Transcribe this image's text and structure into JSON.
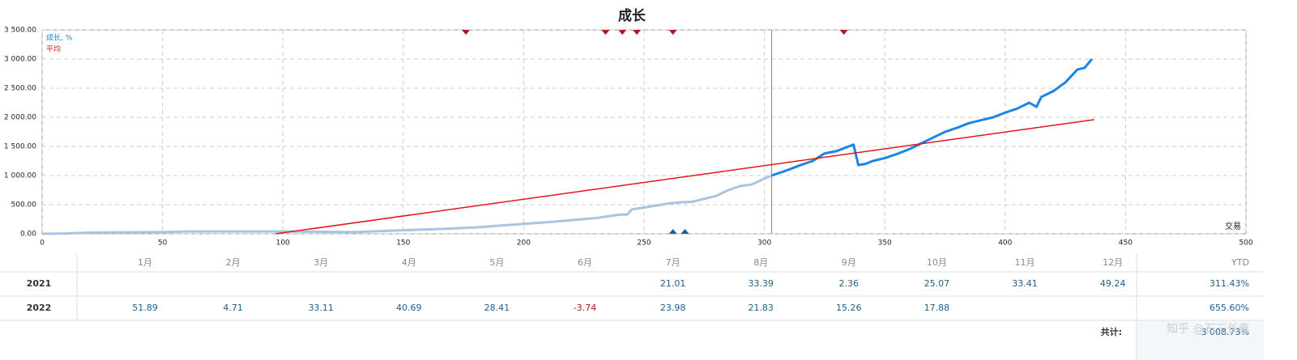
{
  "chart_data": {
    "type": "line",
    "title": "成长",
    "xlabel": "交易",
    "xlim": [
      0,
      500
    ],
    "xticks": [
      0,
      50,
      100,
      150,
      200,
      250,
      300,
      350,
      400,
      450,
      500
    ],
    "ylim": [
      0,
      3500
    ],
    "yticks": [
      {
        "value": 0,
        "label": "0.00"
      },
      {
        "value": 500,
        "label": "500.00"
      },
      {
        "value": 1000,
        "label": "1 000.00"
      },
      {
        "value": 1500,
        "label": "1 500.00"
      },
      {
        "value": 2000,
        "label": "2 000.00"
      },
      {
        "value": 2500,
        "label": "2 500.00"
      },
      {
        "value": 3000,
        "label": "3 000.00"
      },
      {
        "value": 3500,
        "label": "3 500.00"
      }
    ],
    "grid": true,
    "marker_x": 303,
    "series": [
      {
        "name": "成长, %",
        "color": "#1a85e6",
        "past_color": "#a9c4e0",
        "x": [
          0,
          10,
          20,
          50,
          60,
          100,
          130,
          150,
          170,
          180,
          200,
          210,
          230,
          240,
          243,
          245,
          250,
          260,
          265,
          270,
          280,
          285,
          290,
          295,
          300,
          303,
          310,
          315,
          320,
          325,
          330,
          335,
          337,
          339,
          342,
          345,
          350,
          355,
          360,
          365,
          370,
          375,
          380,
          385,
          390,
          395,
          400,
          405,
          410,
          413,
          415,
          420,
          425,
          430,
          433,
          436
        ],
        "values": [
          0,
          5,
          20,
          30,
          40,
          40,
          30,
          60,
          90,
          110,
          170,
          200,
          270,
          330,
          330,
          420,
          450,
          520,
          540,
          550,
          650,
          750,
          820,
          850,
          950,
          1000,
          1100,
          1180,
          1250,
          1380,
          1420,
          1500,
          1530,
          1180,
          1200,
          1250,
          1300,
          1370,
          1450,
          1550,
          1650,
          1750,
          1820,
          1900,
          1950,
          2000,
          2080,
          2150,
          2250,
          2180,
          2350,
          2450,
          2600,
          2820,
          2850,
          3000
        ]
      },
      {
        "name": "平均",
        "color": "#e8141a",
        "x": [
          97,
          437
        ],
        "values": [
          0,
          1960
        ]
      }
    ],
    "top_markers": {
      "color": "#b01818",
      "x": [
        176,
        234,
        241,
        247,
        262,
        333
      ]
    },
    "bottom_markers": {
      "color": "#1f5f8f",
      "x": [
        262,
        267
      ]
    }
  },
  "table": {
    "columns": [
      "1月",
      "2月",
      "3月",
      "4月",
      "5月",
      "6月",
      "7月",
      "8月",
      "9月",
      "10月",
      "11月",
      "12月"
    ],
    "ytd_header": "YTD",
    "rows": [
      {
        "year": "2021",
        "values": [
          null,
          null,
          null,
          null,
          null,
          null,
          21.01,
          33.39,
          2.36,
          25.07,
          33.41,
          49.24
        ],
        "ytd": "311.43%"
      },
      {
        "year": "2022",
        "values": [
          51.89,
          4.71,
          33.11,
          40.69,
          28.41,
          -3.74,
          23.98,
          21.83,
          15.26,
          17.88,
          null,
          null
        ],
        "ytd": "655.60%"
      }
    ],
    "total_label": "共计:",
    "total": "3 008.73%"
  },
  "watermark": "知乎 @石三长春"
}
